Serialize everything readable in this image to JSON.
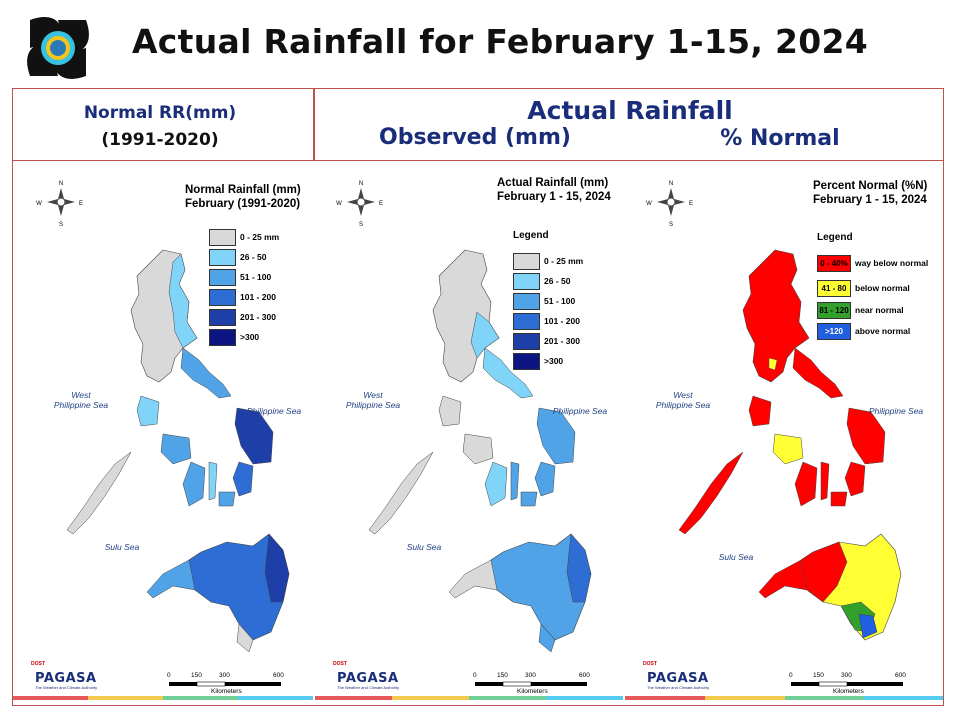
{
  "slide_title": "Actual Rainfall for February 1-15, 2024",
  "header": {
    "normal_line1": "Normal RR(mm)",
    "normal_line2": "(1991-2020)",
    "actual": "Actual Rainfall",
    "observed": "Observed (mm)",
    "percent": "% Normal"
  },
  "panels": [
    {
      "id": "normal",
      "title_line1": "Normal Rainfall (mm)",
      "title_line2": "February (1991-2020)",
      "legend_title": "",
      "legend": [
        {
          "label": "0 - 25 mm",
          "color": "#d9d9d9"
        },
        {
          "label": "26 - 50",
          "color": "#7fd4f8"
        },
        {
          "label": "51 - 100",
          "color": "#4fa3e6"
        },
        {
          "label": "101 - 200",
          "color": "#2e6ed4"
        },
        {
          "label": "201 - 300",
          "color": "#1f3fa8"
        },
        {
          "label": ">300",
          "color": "#0b1480"
        }
      ]
    },
    {
      "id": "observed",
      "title_line1": "Actual Rainfall (mm)",
      "title_line2": "February 1 - 15, 2024",
      "legend_title": "Legend",
      "legend": [
        {
          "label": "0 - 25 mm",
          "color": "#d9d9d9"
        },
        {
          "label": "26 - 50",
          "color": "#7fd4f8"
        },
        {
          "label": "51 - 100",
          "color": "#4fa3e6"
        },
        {
          "label": "101 - 200",
          "color": "#2e6ed4"
        },
        {
          "label": "201 - 300",
          "color": "#1f3fa8"
        },
        {
          "label": ">300",
          "color": "#0b1480"
        }
      ]
    },
    {
      "id": "percent",
      "title_line1": "Percent Normal (%N)",
      "title_line2": "February 1 - 15, 2024",
      "legend_title": "Legend",
      "legend": [
        {
          "swatch": "0 - 40%",
          "label": "way below normal",
          "color": "#ff0000"
        },
        {
          "swatch": "41 - 80",
          "label": "below normal",
          "color": "#ffff33"
        },
        {
          "swatch": "81 - 120",
          "label": "near normal",
          "color": "#33a02c"
        },
        {
          "swatch": ">120",
          "label": "above normal",
          "color": "#1f5fe0"
        }
      ]
    }
  ],
  "seas": {
    "west_line1": "West",
    "west_line2": "Philippine Sea",
    "east": "Philippine Sea",
    "sulu": "Sulu Sea"
  },
  "compass": {
    "n": "N",
    "s": "S",
    "e": "E",
    "w": "W"
  },
  "scale": {
    "n0": "0",
    "n1": "150",
    "n2": "300",
    "n3": "600",
    "unit": "Kilometers"
  },
  "branding": {
    "top": "DOST",
    "name": "PAGASA",
    "tagline": "The Weather and Climate Authority"
  },
  "colors": {
    "frame": "#c0504d",
    "header_text": "#1a2d7a",
    "way_below": "#ff0000",
    "below": "#ffff33",
    "near": "#33a02c",
    "above": "#1f5fe0"
  }
}
